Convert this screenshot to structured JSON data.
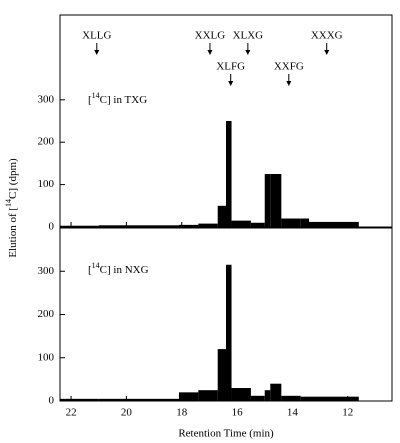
{
  "chart_data": [
    {
      "type": "histogram",
      "label": "[14C] in TXG",
      "ylabel": "Elution of [14C] (dpm)",
      "bins": [
        22.4,
        21.0,
        18.1,
        17.4,
        16.7,
        16.4,
        16.2,
        15.5,
        15.0,
        14.8,
        14.4,
        13.7,
        13.4,
        11.6
      ],
      "values": [
        3,
        4,
        5,
        8,
        50,
        250,
        15,
        10,
        125,
        125,
        20,
        20,
        12
      ],
      "color": "#000000",
      "xlim": [
        22.4,
        10.4
      ],
      "ylim": [
        0,
        500
      ],
      "yticks": [
        0,
        100,
        200,
        300
      ],
      "xticks": [
        22,
        20,
        18,
        16,
        14,
        12
      ],
      "annotations": [
        {
          "text": "XLLG",
          "x": 21.07
        },
        {
          "text": "XXLG",
          "x": 16.98
        },
        {
          "text": "XLXG",
          "x": 15.61
        },
        {
          "text": "XLFG",
          "x": 16.23
        },
        {
          "text": "XXFG",
          "x": 14.13
        },
        {
          "text": "XXXG",
          "x": 12.76
        }
      ]
    },
    {
      "type": "histogram",
      "label": "[14C] in NXG",
      "xlabel": "Retention Time (min)",
      "bins": [
        22.4,
        21.0,
        18.1,
        17.4,
        16.7,
        16.4,
        16.2,
        15.5,
        15.0,
        14.8,
        14.4,
        13.7,
        13.4,
        11.6
      ],
      "values": [
        5,
        5,
        20,
        25,
        120,
        315,
        30,
        12,
        25,
        40,
        12,
        10,
        10
      ],
      "color": "#000000",
      "xlim": [
        22.4,
        10.4
      ],
      "ylim": [
        0,
        400
      ],
      "yticks": [
        0,
        100,
        200,
        300
      ],
      "xticks": [
        22,
        20,
        18,
        16,
        14,
        12
      ]
    }
  ]
}
